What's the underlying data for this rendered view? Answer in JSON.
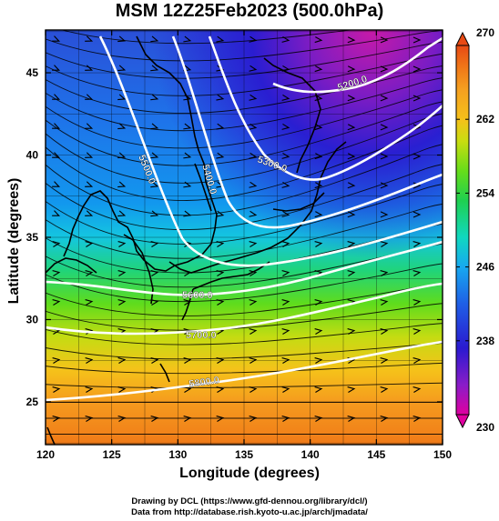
{
  "title": "MSM 12Z25Feb2023 (500.0hPa)",
  "x_axis": {
    "label": "Longitude (degrees)",
    "range": [
      120,
      150
    ],
    "ticks": [
      "120",
      "125",
      "130",
      "135",
      "140",
      "145",
      "150"
    ]
  },
  "y_axis": {
    "label": "Latitude  (degrees)",
    "range": [
      22.4,
      47.6
    ],
    "ticks": [
      "25",
      "30",
      "35",
      "40",
      "45"
    ]
  },
  "colorbar": {
    "range": [
      230,
      270
    ],
    "ticks": [
      "230",
      "238",
      "246",
      "254",
      "262",
      "270"
    ],
    "palette": [
      "#e000a0",
      "#8a1cc8",
      "#2a1ad0",
      "#1f5fe6",
      "#17a9f0",
      "#10d8c0",
      "#1fd050",
      "#66dd1a",
      "#c8dd10",
      "#f5c01a",
      "#f5a020",
      "#f07818",
      "#e84a14"
    ]
  },
  "contours": [
    {
      "label": "5200.0",
      "level": 5200
    },
    {
      "label": "5300.0",
      "level": 5300
    },
    {
      "label": "5400.0",
      "level": 5400
    },
    {
      "label": "5500.0",
      "level": 5500
    },
    {
      "label": "5600.0",
      "level": 5600
    },
    {
      "label": "5700.0",
      "level": 5700
    },
    {
      "label": "5800.0",
      "level": 5800
    }
  ],
  "credits": [
    "Drawing by DCL (https://www.gfd-dennou.org/library/dcl/)",
    "Data from http://database.rish.kyoto-u.ac.jp/arch/jmadata/"
  ]
}
